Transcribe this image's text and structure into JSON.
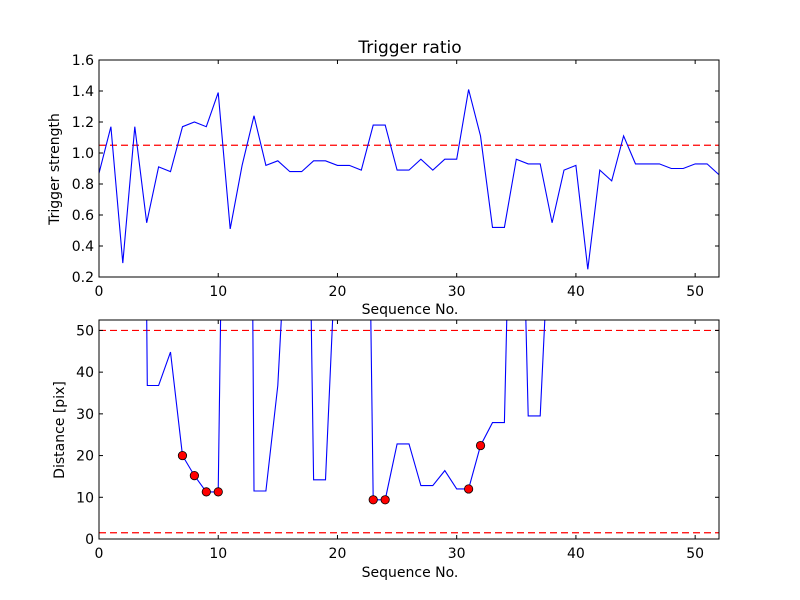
{
  "chart_data": [
    {
      "type": "line",
      "title": "Trigger ratio",
      "xlabel": "Sequence No.",
      "ylabel": "Trigger strength",
      "xlim": [
        0,
        52
      ],
      "ylim": [
        0.2,
        1.6
      ],
      "xticks": [
        0,
        10,
        20,
        30,
        40,
        50
      ],
      "yticks": [
        0.2,
        0.4,
        0.6,
        0.8,
        1.0,
        1.2,
        1.4,
        1.6
      ],
      "ytick_labels": [
        "0.2",
        "0.4",
        "0.6",
        "0.8",
        "1.0",
        "1.2",
        "1.4",
        "1.6"
      ],
      "grid": false,
      "reference_lines": [
        1.05
      ],
      "series": [
        {
          "color": "#0000ff",
          "x": [
            0,
            1,
            2,
            3,
            4,
            5,
            6,
            7,
            8,
            9,
            10,
            11,
            12,
            13,
            14,
            15,
            16,
            17,
            18,
            19,
            20,
            21,
            22,
            23,
            24,
            25,
            26,
            27,
            28,
            29,
            30,
            31,
            32,
            33,
            34,
            35,
            36,
            37,
            38,
            39,
            40,
            41,
            42,
            43,
            44,
            45,
            46,
            47,
            48,
            49,
            50,
            51,
            52
          ],
          "y": [
            0.87,
            1.17,
            0.29,
            1.17,
            0.55,
            0.91,
            0.88,
            1.17,
            1.2,
            1.17,
            1.39,
            0.51,
            0.92,
            1.24,
            0.92,
            0.95,
            0.88,
            0.88,
            0.95,
            0.95,
            0.92,
            0.92,
            0.89,
            1.18,
            1.18,
            0.89,
            0.89,
            0.96,
            0.89,
            0.96,
            0.96,
            1.41,
            1.11,
            0.52,
            0.52,
            0.96,
            0.93,
            0.93,
            0.55,
            0.89,
            0.92,
            0.25,
            0.89,
            0.82,
            1.11,
            0.93,
            0.93,
            0.93,
            0.9,
            0.9,
            0.93,
            0.93,
            0.86
          ]
        }
      ]
    },
    {
      "type": "line",
      "title": "",
      "xlabel": "Sequence No.",
      "ylabel": "Distance [pix]",
      "xlim": [
        0,
        52
      ],
      "ylim": [
        0,
        52.5
      ],
      "xticks": [
        0,
        10,
        20,
        30,
        40,
        50
      ],
      "yticks": [
        0,
        10,
        20,
        30,
        40,
        50
      ],
      "ytick_labels": [
        "0",
        "10",
        "20",
        "30",
        "40",
        "50"
      ],
      "grid": false,
      "reference_lines": [
        50,
        1.5
      ],
      "series": [
        {
          "color": "#0000ff",
          "x": [
            4,
            4.05,
            5,
            6,
            7,
            8,
            9,
            10,
            10.2,
            12.9,
            13,
            14,
            15,
            15.3,
            17.8,
            18,
            19,
            19.6,
            22.8,
            23,
            24,
            25,
            26,
            27,
            28,
            29,
            30,
            31,
            32,
            33,
            34,
            34.2,
            35.8,
            36,
            37,
            37.4
          ],
          "y": [
            53,
            36.8,
            36.8,
            44.8,
            20,
            15.2,
            11.3,
            11.3,
            53,
            53,
            11.5,
            11.5,
            36.8,
            53,
            53,
            14.2,
            14.2,
            53,
            53,
            9.4,
            9.4,
            22.8,
            22.8,
            12.8,
            12.8,
            16.4,
            12,
            12,
            22.4,
            27.9,
            27.9,
            53,
            53,
            29.5,
            29.5,
            53
          ]
        },
        {
          "name": "",
          "marker": "circle",
          "color": "#ff0000",
          "x": [
            7,
            8,
            9,
            10,
            23,
            24,
            31,
            32
          ],
          "y": [
            20,
            15.2,
            11.3,
            11.3,
            9.4,
            9.4,
            12,
            22.4
          ]
        }
      ]
    }
  ]
}
